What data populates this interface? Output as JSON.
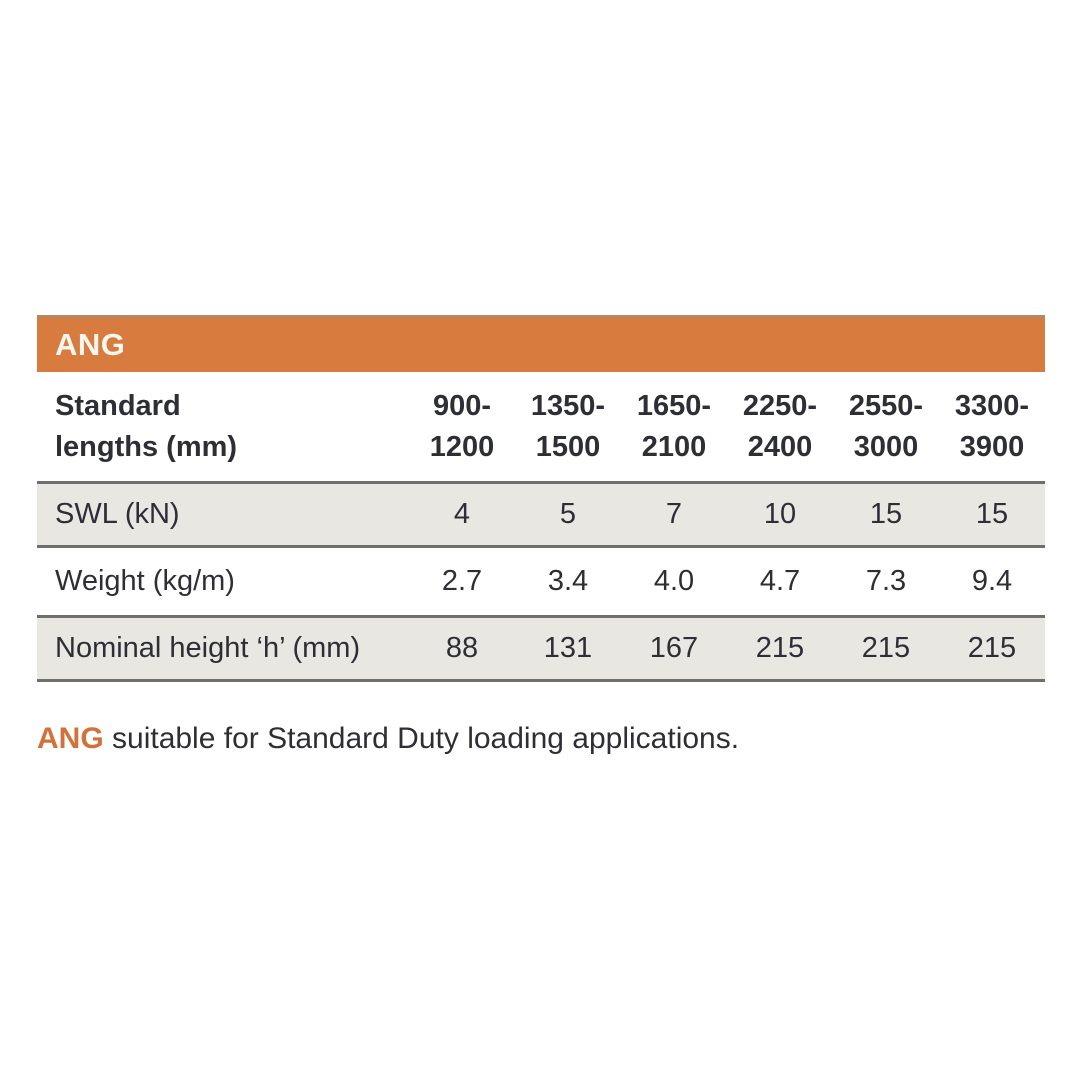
{
  "colors": {
    "accent_orange": "#d87b3e",
    "shaded_row_bg": "#e9e7e1",
    "rule_gray": "#6f6f6d",
    "text_dark": "#2e2e37",
    "footnote_orange": "#d4713a"
  },
  "table": {
    "title": "ANG",
    "row_header": {
      "line1": "Standard",
      "line2": "lengths (mm)"
    },
    "columns": [
      {
        "line1": "900-",
        "line2": "1200"
      },
      {
        "line1": "1350-",
        "line2": "1500"
      },
      {
        "line1": "1650-",
        "line2": "2100"
      },
      {
        "line1": "2250-",
        "line2": "2400"
      },
      {
        "line1": "2550-",
        "line2": "3000"
      },
      {
        "line1": "3300-",
        "line2": "3900"
      }
    ],
    "rows": [
      {
        "label": "SWL (kN)",
        "values": [
          "4",
          "5",
          "7",
          "10",
          "15",
          "15"
        ]
      },
      {
        "label": "Weight (kg/m)",
        "values": [
          "2.7",
          "3.4",
          "4.0",
          "4.7",
          "7.3",
          "9.4"
        ]
      },
      {
        "label": "Nominal height ‘h’ (mm)",
        "values": [
          "88",
          "131",
          "167",
          "215",
          "215",
          "215"
        ]
      }
    ]
  },
  "footnote": {
    "highlight": "ANG",
    "text": " suitable for Standard Duty loading applications."
  }
}
